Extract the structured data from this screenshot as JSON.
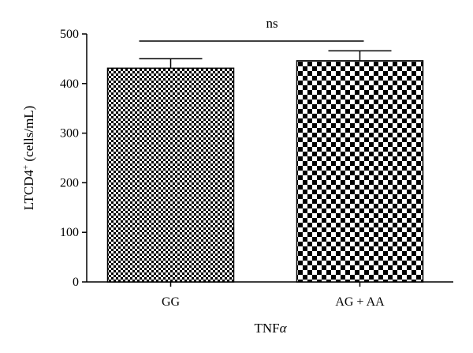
{
  "chart_data": {
    "type": "bar",
    "title": "",
    "xlabel": "TNF",
    "xlabel_suffix": "α",
    "ylabel": "LTCD4",
    "ylabel_sup": "+",
    "ylabel_units": " (cells/mL)",
    "categories": [
      "GG",
      "AG + AA"
    ],
    "values": [
      431,
      446
    ],
    "errors": [
      19,
      20
    ],
    "ylim": [
      0,
      500
    ],
    "yticks": [
      0,
      100,
      200,
      300,
      400,
      500
    ],
    "significance": {
      "label": "ns",
      "between": [
        0,
        1
      ]
    },
    "patterns": [
      "fine-checker",
      "coarse-checker"
    ],
    "grid": false,
    "legend": "none"
  }
}
